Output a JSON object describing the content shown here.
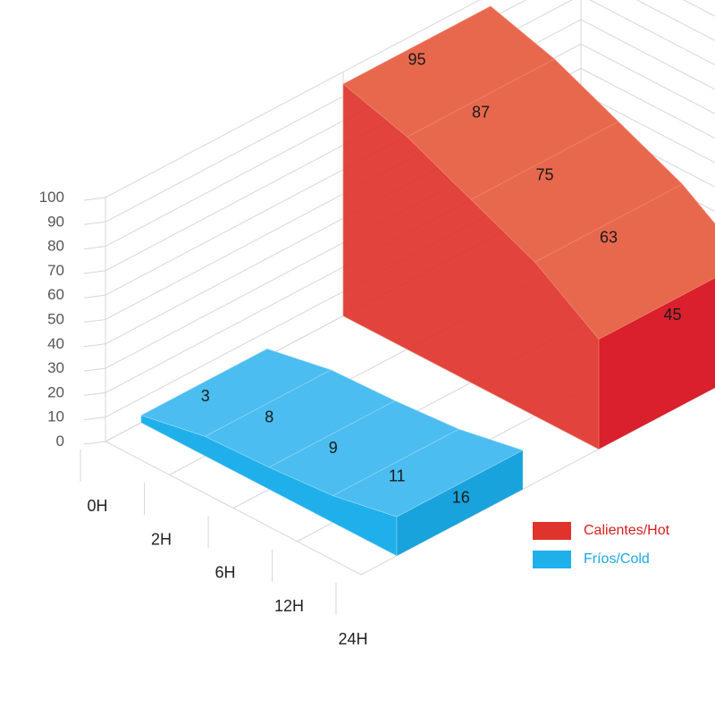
{
  "chart_data": {
    "type": "area",
    "categories": [
      "0H",
      "2H",
      "6H",
      "12H",
      "24H"
    ],
    "yticks": [
      "100",
      "90",
      "80",
      "70",
      "60",
      "50",
      "40",
      "30",
      "20",
      "10",
      "0"
    ],
    "ylim": [
      0,
      100
    ],
    "grid": true,
    "legend_position": "bottom-right",
    "series": [
      {
        "name": "Calientes/Hot",
        "values": [
          95,
          87,
          75,
          63,
          45
        ],
        "labels": [
          "95",
          "87",
          "75",
          "63",
          "45"
        ],
        "color": "#e0332b"
      },
      {
        "name": "Fríos/Cold",
        "values": [
          3,
          8,
          9,
          11,
          16
        ],
        "labels": [
          "3",
          "8",
          "9",
          "11",
          "16"
        ],
        "color": "#1fb0ec"
      }
    ]
  }
}
